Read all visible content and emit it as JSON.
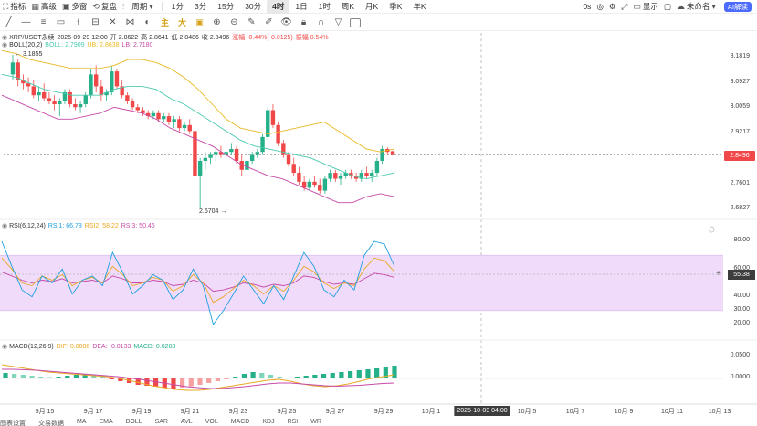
{
  "topbar": {
    "items": [
      {
        "icon": "chart-indicator-icon",
        "glyph": "⛶",
        "label": "指标"
      },
      {
        "icon": "grid-icon",
        "glyph": "▦",
        "label": "高级"
      },
      {
        "icon": "layout-icon",
        "glyph": "▣",
        "label": "多窗"
      },
      {
        "icon": "replay-icon",
        "glyph": "⟲",
        "label": "复盘"
      },
      {
        "icon": "chart-type-icon",
        "glyph": "⫶",
        "label": ""
      },
      {
        "icon": "none",
        "glyph": "",
        "label": "周期"
      }
    ],
    "timeframes": [
      "1分",
      "3分",
      "15分",
      "30分",
      "4时",
      "1日",
      "1时",
      "周K",
      "月K",
      "季K",
      "年K"
    ],
    "active_timeframe": "4时",
    "right": {
      "countdown": "0s",
      "unsync_label": "未命名",
      "display_label": "显示",
      "ai_label": "AI解读"
    }
  },
  "chart_legend": {
    "pair": "XRP/USDT永续",
    "datetime": "2025-09-29 12:00",
    "open": "开 2.8622",
    "high": "高 2.8641",
    "low": "低 2.8486",
    "close": "收 2.8496",
    "change": "涨幅 -0.44%(-0.0125)",
    "amplitude": "振幅 0.54%"
  },
  "boll_legend": {
    "name": "BOLL(20,2)",
    "mid": "BOLL: 2.7909",
    "ub": "UB: 2.8638",
    "lb": "LB: 2.7180"
  },
  "rsi_legend": {
    "name": "RSI(6,12,24)",
    "rsi1": "RSI1: 66.78",
    "rsi2": "RSI2: 58.22",
    "rsi3": "RSI3: 50.46"
  },
  "macd_legend": {
    "name": "MACD(12,26,9)",
    "dif": "DIF: 0.0086",
    "dea": "DEA: -0.0133",
    "macd": "MACD: 0.0283"
  },
  "price_axis": [
    "3.1819",
    "3.0927",
    "3.0059",
    "2.9217",
    "2.7601",
    "2.6827"
  ],
  "current_price": "2.8496",
  "rsi_axis": [
    "80.00",
    "60.00",
    "40.00",
    "30.00",
    "20.00"
  ],
  "rsi_current": "55.38",
  "macd_axis": [
    "0.0500",
    "0.0000"
  ],
  "high_marker": "3.1855",
  "low_marker": "2.6704",
  "x_axis": [
    "9月 15",
    "9月 17",
    "9月 19",
    "9月 21",
    "9月 23",
    "9月 25",
    "9月 27",
    "9月 29",
    "10月 1",
    "10月 5",
    "10月 7",
    "10月 9",
    "10月 11",
    "10月 13"
  ],
  "x_cursor": "2025-10-03 04:00",
  "colors": {
    "up": "#26b08a",
    "down": "#f04848",
    "boll_up": "#e8b923",
    "boll_mid": "#4cc9b0",
    "boll_low": "#c64aa8",
    "rsi_band": "#f0dcfa"
  },
  "bottom_bar": [
    "图表设置",
    "交易数据",
    "MA",
    "EMA",
    "BOLL",
    "SAR",
    "AVL",
    "VOL",
    "MACD",
    "KDJ",
    "RSI",
    "WR"
  ],
  "chart_data": {
    "type": "candlestick",
    "xlabel": "",
    "ylabel": "",
    "ylim": [
      2.64,
      3.21
    ],
    "x_range": [
      "9月 14",
      "10月 13"
    ],
    "candles_ohlc": [
      [
        3.12,
        3.186,
        3.1,
        3.16
      ],
      [
        3.16,
        3.17,
        3.08,
        3.1
      ],
      [
        3.1,
        3.12,
        3.07,
        3.09
      ],
      [
        3.09,
        3.11,
        3.06,
        3.08
      ],
      [
        3.08,
        3.1,
        3.04,
        3.05
      ],
      [
        3.05,
        3.08,
        3.03,
        3.06
      ],
      [
        3.06,
        3.09,
        3.03,
        3.04
      ],
      [
        3.04,
        3.06,
        3.02,
        3.03
      ],
      [
        3.03,
        3.05,
        3.0,
        3.02
      ],
      [
        3.02,
        3.04,
        2.98,
        3.03
      ],
      [
        3.03,
        3.07,
        3.02,
        3.06
      ],
      [
        3.06,
        3.07,
        3.01,
        3.02
      ],
      [
        3.02,
        3.04,
        3.0,
        3.01
      ],
      [
        3.01,
        3.03,
        2.99,
        3.02
      ],
      [
        3.02,
        3.06,
        3.01,
        3.05
      ],
      [
        3.05,
        3.14,
        3.04,
        3.12
      ],
      [
        3.12,
        3.15,
        3.06,
        3.08
      ],
      [
        3.08,
        3.1,
        3.03,
        3.05
      ],
      [
        3.05,
        3.07,
        3.03,
        3.06
      ],
      [
        3.06,
        3.15,
        3.05,
        3.13
      ],
      [
        3.13,
        3.14,
        3.07,
        3.08
      ],
      [
        3.08,
        3.1,
        3.04,
        3.05
      ],
      [
        3.05,
        3.06,
        3.02,
        3.03
      ],
      [
        3.03,
        3.04,
        3.0,
        3.01
      ],
      [
        3.01,
        3.02,
        2.99,
        3.0
      ],
      [
        3.0,
        3.01,
        2.98,
        2.99
      ],
      [
        2.99,
        3.0,
        2.97,
        2.98
      ],
      [
        2.98,
        3.0,
        2.97,
        2.99
      ],
      [
        2.99,
        3.0,
        2.96,
        2.97
      ],
      [
        2.97,
        2.99,
        2.96,
        2.98
      ],
      [
        2.98,
        2.99,
        2.95,
        2.96
      ],
      [
        2.96,
        2.98,
        2.94,
        2.97
      ],
      [
        2.97,
        2.98,
        2.93,
        2.94
      ],
      [
        2.94,
        2.96,
        2.93,
        2.95
      ],
      [
        2.95,
        2.97,
        2.92,
        2.93
      ],
      [
        2.93,
        2.94,
        2.75,
        2.78
      ],
      [
        2.78,
        2.84,
        2.67,
        2.83
      ],
      [
        2.83,
        2.86,
        2.8,
        2.84
      ],
      [
        2.84,
        2.86,
        2.82,
        2.85
      ],
      [
        2.85,
        2.87,
        2.83,
        2.86
      ],
      [
        2.86,
        2.88,
        2.84,
        2.85
      ],
      [
        2.85,
        2.87,
        2.83,
        2.86
      ],
      [
        2.86,
        2.89,
        2.85,
        2.87
      ],
      [
        2.87,
        2.88,
        2.82,
        2.83
      ],
      [
        2.83,
        2.85,
        2.78,
        2.8
      ],
      [
        2.8,
        2.84,
        2.79,
        2.83
      ],
      [
        2.83,
        2.86,
        2.82,
        2.85
      ],
      [
        2.85,
        2.87,
        2.84,
        2.86
      ],
      [
        2.86,
        2.92,
        2.85,
        2.91
      ],
      [
        2.91,
        3.01,
        2.9,
        3.0
      ],
      [
        3.0,
        3.02,
        2.94,
        2.95
      ],
      [
        2.95,
        2.96,
        2.88,
        2.89
      ],
      [
        2.89,
        2.9,
        2.84,
        2.85
      ],
      [
        2.85,
        2.86,
        2.81,
        2.82
      ],
      [
        2.82,
        2.84,
        2.78,
        2.79
      ],
      [
        2.79,
        2.81,
        2.75,
        2.76
      ],
      [
        2.76,
        2.78,
        2.73,
        2.74
      ],
      [
        2.74,
        2.77,
        2.73,
        2.76
      ],
      [
        2.76,
        2.78,
        2.74,
        2.75
      ],
      [
        2.75,
        2.77,
        2.72,
        2.73
      ],
      [
        2.73,
        2.78,
        2.72,
        2.77
      ],
      [
        2.77,
        2.8,
        2.76,
        2.79
      ],
      [
        2.79,
        2.8,
        2.76,
        2.77
      ],
      [
        2.77,
        2.79,
        2.75,
        2.78
      ],
      [
        2.78,
        2.8,
        2.77,
        2.79
      ],
      [
        2.79,
        2.8,
        2.77,
        2.78
      ],
      [
        2.78,
        2.79,
        2.76,
        2.77
      ],
      [
        2.77,
        2.8,
        2.76,
        2.79
      ],
      [
        2.79,
        2.81,
        2.77,
        2.78
      ],
      [
        2.78,
        2.8,
        2.76,
        2.79
      ],
      [
        2.79,
        2.84,
        2.78,
        2.83
      ],
      [
        2.83,
        2.88,
        2.82,
        2.87
      ],
      [
        2.87,
        2.875,
        2.85,
        2.86
      ],
      [
        2.8622,
        2.8641,
        2.8486,
        2.8496
      ]
    ],
    "boll_upper": [
      3.2,
      3.19,
      3.17,
      3.16,
      3.15,
      3.14,
      3.14,
      3.14,
      3.15,
      3.17,
      3.17,
      3.16,
      3.14,
      3.11,
      3.07,
      3.02,
      2.97,
      2.94,
      2.93,
      2.92,
      2.93,
      2.94,
      2.95,
      2.96,
      2.93,
      2.9,
      2.87,
      2.86,
      2.87
    ],
    "boll_mid": [
      3.12,
      3.11,
      3.09,
      3.07,
      3.06,
      3.05,
      3.05,
      3.05,
      3.07,
      3.08,
      3.08,
      3.07,
      3.04,
      3.02,
      2.99,
      2.96,
      2.93,
      2.9,
      2.88,
      2.87,
      2.86,
      2.85,
      2.84,
      2.82,
      2.8,
      2.78,
      2.77,
      2.78,
      2.79
    ],
    "boll_lower": [
      3.05,
      3.03,
      3.01,
      2.99,
      2.97,
      2.97,
      2.98,
      2.99,
      3.01,
      3.0,
      2.99,
      2.97,
      2.94,
      2.92,
      2.9,
      2.88,
      2.85,
      2.82,
      2.8,
      2.78,
      2.77,
      2.75,
      2.73,
      2.71,
      2.69,
      2.69,
      2.71,
      2.72,
      2.71
    ],
    "rsi1": [
      80,
      62,
      45,
      40,
      55,
      50,
      60,
      42,
      52,
      55,
      48,
      72,
      58,
      42,
      48,
      56,
      52,
      38,
      45,
      60,
      48,
      20,
      30,
      42,
      55,
      45,
      35,
      48,
      38,
      55,
      72,
      62,
      45,
      40,
      52,
      45,
      70,
      80,
      78,
      62
    ],
    "rsi2": [
      68,
      60,
      50,
      48,
      55,
      52,
      56,
      48,
      52,
      54,
      50,
      62,
      56,
      48,
      50,
      54,
      52,
      44,
      48,
      56,
      50,
      36,
      40,
      46,
      52,
      48,
      42,
      48,
      44,
      52,
      62,
      58,
      50,
      46,
      50,
      48,
      60,
      68,
      66,
      58
    ],
    "rsi3": [
      58,
      55,
      52,
      50,
      52,
      51,
      53,
      50,
      51,
      52,
      50,
      55,
      53,
      50,
      50,
      52,
      51,
      48,
      49,
      52,
      50,
      44,
      45,
      47,
      50,
      49,
      47,
      49,
      48,
      50,
      55,
      54,
      51,
      49,
      50,
      49,
      53,
      57,
      56,
      54
    ],
    "macd_hist": [
      0.012,
      0.01,
      0.008,
      0.006,
      0.004,
      0.003,
      0.004,
      0.006,
      0.008,
      0.01,
      0.009,
      0.007,
      -0.002,
      -0.006,
      -0.01,
      -0.014,
      -0.016,
      -0.018,
      -0.02,
      -0.022,
      -0.02,
      -0.017,
      -0.014,
      -0.01,
      -0.006,
      -0.002,
      0.004,
      0.01,
      0.014,
      0.012,
      0.008,
      0.004,
      0.002,
      0.004,
      0.006,
      0.008,
      0.01,
      0.012,
      0.014,
      0.016,
      0.018,
      0.02,
      0.022,
      0.025,
      0.028
    ],
    "dif": [
      0.03,
      0.026,
      0.022,
      0.018,
      0.014,
      0.012,
      0.01,
      0.008,
      0.006,
      0.004,
      0.001,
      -0.004,
      -0.01,
      -0.016,
      -0.02,
      -0.024,
      -0.026,
      -0.026,
      -0.024,
      -0.02,
      -0.016,
      -0.012,
      -0.008,
      -0.004,
      -0.002,
      -0.006,
      -0.012,
      -0.016,
      -0.018,
      -0.016,
      -0.012,
      -0.006,
      0.0,
      0.004,
      0.008
    ],
    "dea": [
      0.02,
      0.02,
      0.019,
      0.018,
      0.016,
      0.014,
      0.012,
      0.01,
      0.008,
      0.006,
      0.004,
      0.001,
      -0.002,
      -0.006,
      -0.01,
      -0.014,
      -0.018,
      -0.02,
      -0.022,
      -0.022,
      -0.02,
      -0.018,
      -0.015,
      -0.012,
      -0.01,
      -0.01,
      -0.012,
      -0.014,
      -0.016,
      -0.017,
      -0.016,
      -0.015,
      -0.013,
      -0.011,
      -0.01
    ]
  }
}
